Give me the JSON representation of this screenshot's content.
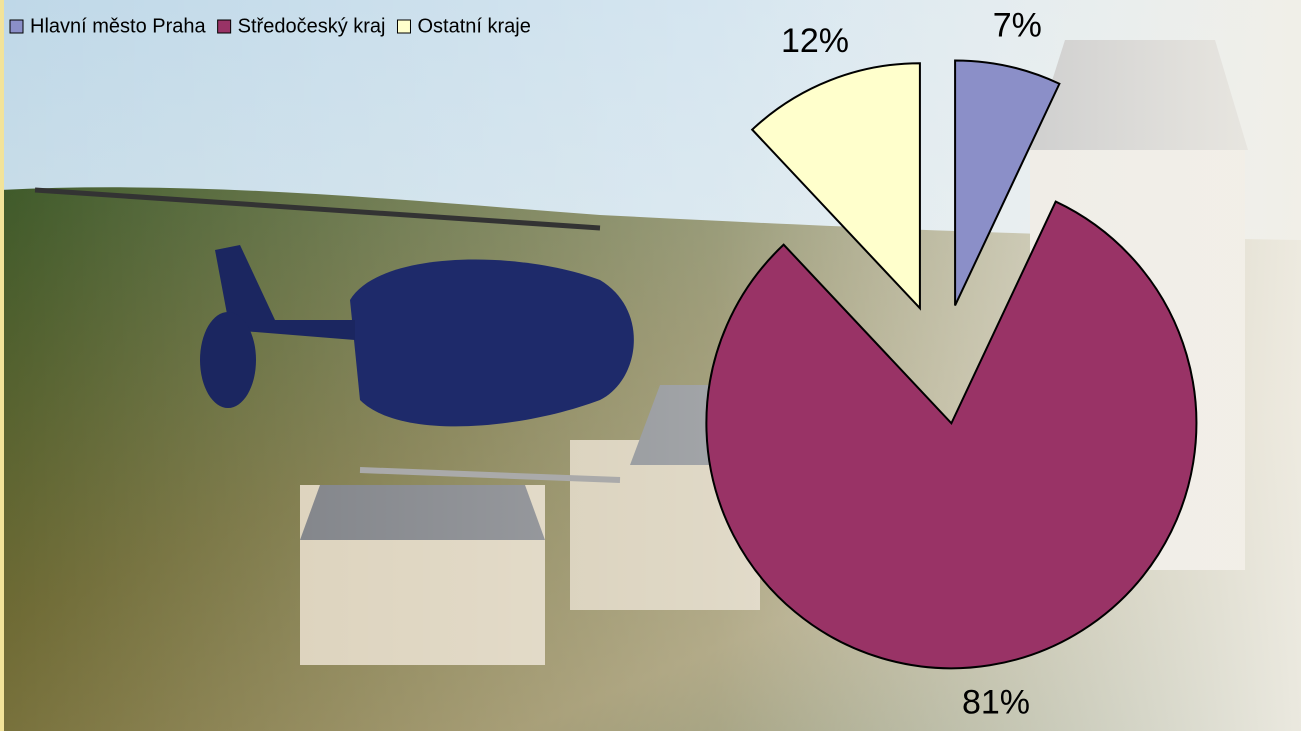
{
  "chart_data": {
    "type": "pie",
    "categories": [
      "Hlavní město Praha",
      "Středočeský kraj",
      "Ostatní kraje"
    ],
    "values": [
      7,
      81,
      12
    ],
    "value_labels": [
      "7%",
      "81%",
      "12%"
    ],
    "colors": [
      "#8b8fc8",
      "#993366",
      "#ffffcc"
    ],
    "legend": "top-left"
  }
}
